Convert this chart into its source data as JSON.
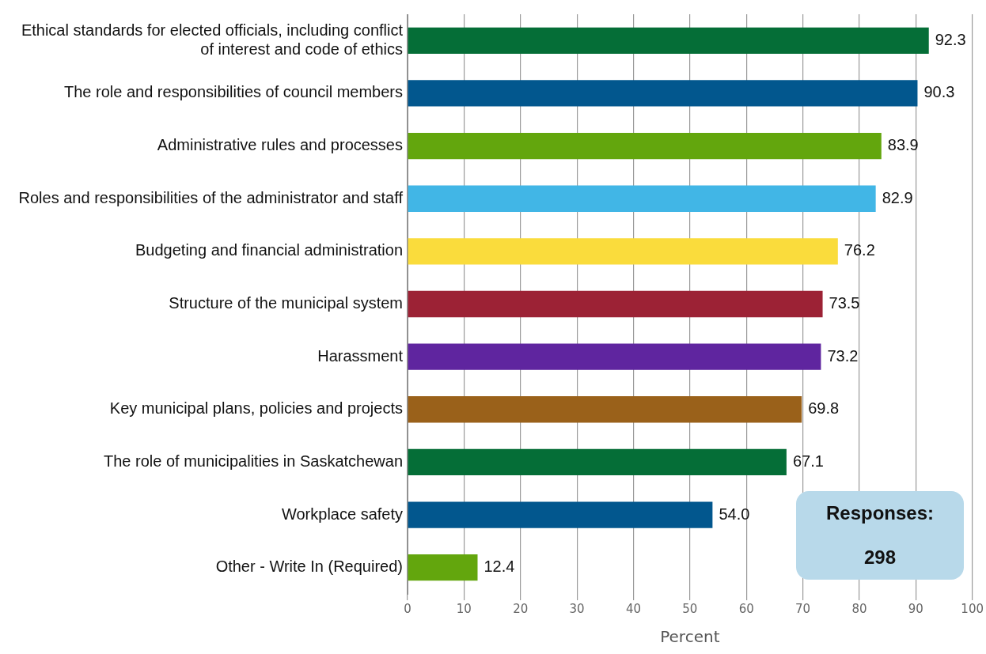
{
  "chart_data": {
    "type": "bar",
    "orientation": "horizontal",
    "xlabel": "Percent",
    "categories": [
      "Ethical standards for elected officials, including conflict of interest and code of ethics",
      "The role and responsibilities of council members",
      "Administrative rules and processes",
      "Roles and responsibilities of the administrator and staff",
      "Budgeting and financial administration",
      "Structure of the municipal system",
      "Harassment",
      "Key municipal plans, policies and projects",
      "The role of municipalities in Saskatchewan",
      "Workplace safety",
      "Other - Write In (Required)"
    ],
    "values": [
      92.3,
      90.3,
      83.9,
      82.9,
      76.2,
      73.5,
      73.2,
      69.8,
      67.1,
      54.0,
      12.4
    ],
    "colors": [
      "#056e37",
      "#02578e",
      "#63a60d",
      "#41b6e6",
      "#fadc3c",
      "#9c2235",
      "#5f259f",
      "#9a611a",
      "#056e37",
      "#02578e",
      "#63a60d"
    ],
    "value_labels": [
      "92.3",
      "90.3",
      "83.9",
      "82.9",
      "76.2",
      "73.5",
      "73.2",
      "69.8",
      "67.1",
      "54.0",
      "12.4"
    ],
    "xlim": [
      0,
      100
    ],
    "xticks": [
      0,
      10,
      20,
      30,
      40,
      50,
      60,
      70,
      80,
      90,
      100
    ],
    "grid": "x",
    "legend": false,
    "annotations": [
      "Responses:",
      "298"
    ]
  }
}
